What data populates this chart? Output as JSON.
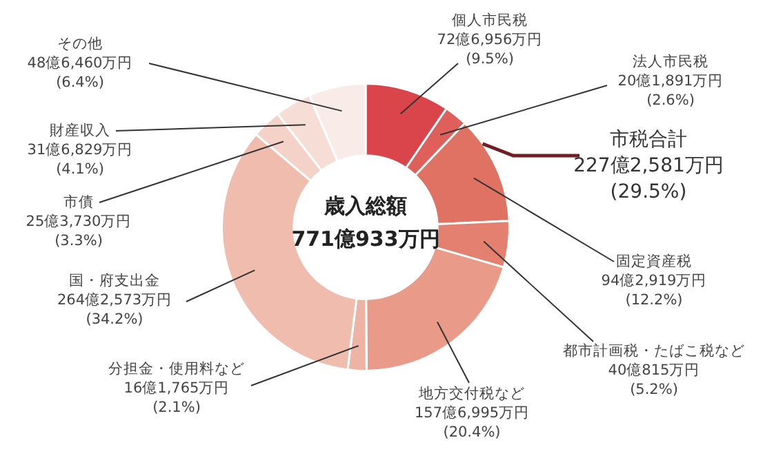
{
  "chart_data": {
    "type": "donut",
    "title": "歳入総額",
    "subtitle": "771億933万円",
    "categories": [
      "個人市民税",
      "法人市民税",
      "固定資産税",
      "都市計画税・たばこ税など",
      "地方交付税など",
      "分担金・使用料など",
      "国・府支出金",
      "市債",
      "財産収入",
      "その他"
    ],
    "values": [
      9.5,
      2.6,
      12.2,
      5.2,
      20.4,
      2.1,
      34.2,
      3.3,
      4.1,
      6.4
    ],
    "value_labels": [
      "72億6,956万円\n(9.5%)",
      "20億1,891万円\n(2.6%)",
      "94億2,919万円\n(12.2%)",
      "40億815万円\n(5.2%)",
      "157億6,995万円\n(20.4%)",
      "16億1,765万円\n(2.1%)",
      "264億2,573万円\n(34.2%)",
      "25億3,730万円\n(3.3%)",
      "31億6,829万円\n(4.1%)",
      "48億6,460万円\n(6.4%)"
    ],
    "colors": [
      "#d9454b",
      "#df5f5a",
      "#e07263",
      "#e4806f",
      "#e99a88",
      "#efb3a5",
      "#f0bcae",
      "#f4d2c8",
      "#f6ddd5",
      "#f9ebe7"
    ],
    "annotations": [
      "市税合計\n227億2,581万円\n(29.5%)"
    ],
    "legend": false
  }
}
